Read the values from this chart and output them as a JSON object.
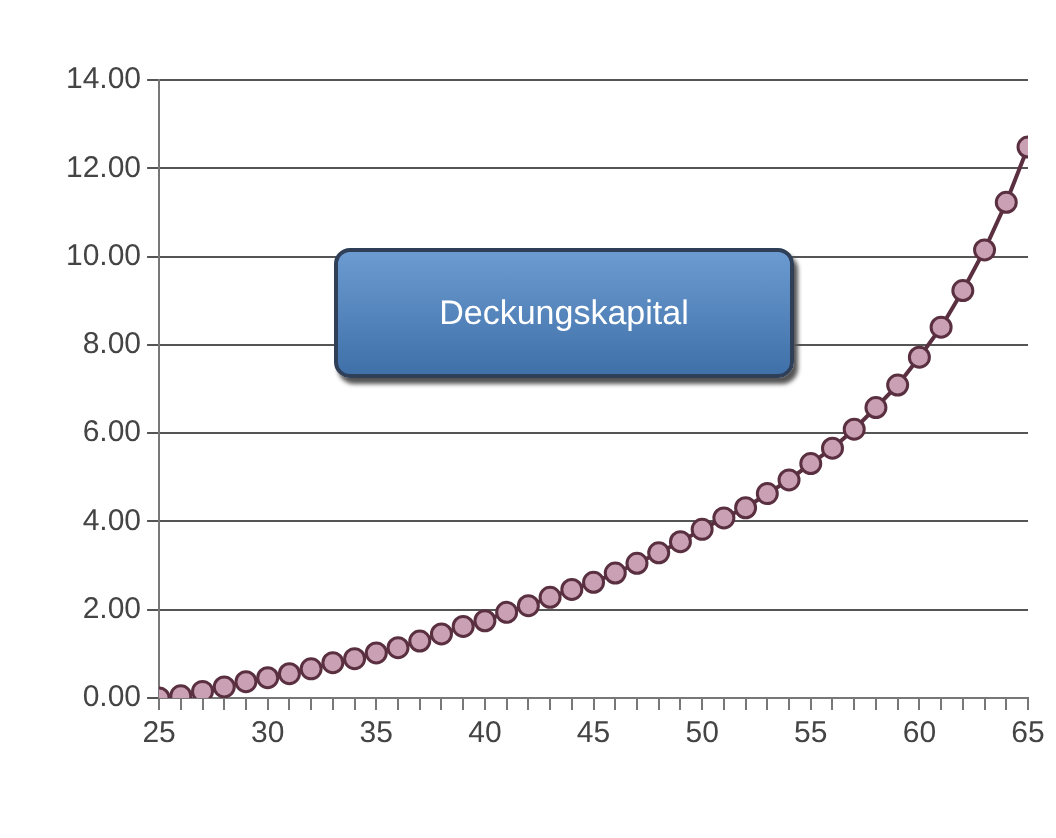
{
  "chart_data": {
    "type": "line",
    "annotations": [
      "Deckungskapital"
    ],
    "x": [
      25,
      26,
      27,
      28,
      29,
      30,
      31,
      32,
      33,
      34,
      35,
      36,
      37,
      38,
      39,
      40,
      41,
      42,
      43,
      44,
      45,
      46,
      47,
      48,
      49,
      50,
      51,
      52,
      53,
      54,
      55,
      56,
      57,
      58,
      59,
      60,
      61,
      62,
      63,
      64,
      65
    ],
    "series": [
      {
        "color": "#5a3040",
        "values": [
          0,
          0.05,
          0.15,
          0.25,
          0.37,
          0.46,
          0.55,
          0.66,
          0.8,
          0.89,
          1.02,
          1.14,
          1.29,
          1.45,
          1.62,
          1.75,
          1.94,
          2.09,
          2.28,
          2.46,
          2.62,
          2.83,
          3.05,
          3.29,
          3.54,
          3.82,
          4.08,
          4.31,
          4.63,
          4.94,
          5.31,
          5.66,
          6.09,
          6.58,
          7.09,
          7.72,
          8.4,
          9.23,
          10.15,
          11.23,
          12.48
        ]
      }
    ],
    "marker": "circle",
    "grid": "y",
    "legend": false,
    "xlim": [
      25,
      65
    ],
    "xticks": [
      25,
      {
        "value": 26,
        "label": null
      },
      {
        "value": 27,
        "label": null
      },
      {
        "value": 28,
        "label": null
      },
      {
        "value": 29,
        "label": null
      },
      30,
      {
        "value": 31,
        "label": null
      },
      {
        "value": 32,
        "label": null
      },
      {
        "value": 33,
        "label": null
      },
      {
        "value": 34,
        "label": null
      },
      35,
      {
        "value": 36,
        "label": null
      },
      {
        "value": 37,
        "label": null
      },
      {
        "value": 38,
        "label": null
      },
      {
        "value": 39,
        "label": null
      },
      40,
      {
        "value": 41,
        "label": null
      },
      {
        "value": 42,
        "label": null
      },
      {
        "value": 43,
        "label": null
      },
      {
        "value": 44,
        "label": null
      },
      45,
      {
        "value": 46,
        "label": null
      },
      {
        "value": 47,
        "label": null
      },
      {
        "value": 48,
        "label": null
      },
      {
        "value": 49,
        "label": null
      },
      50,
      {
        "value": 51,
        "label": null
      },
      {
        "value": 52,
        "label": null
      },
      {
        "value": 53,
        "label": null
      },
      {
        "value": 54,
        "label": null
      },
      55,
      {
        "value": 56,
        "label": null
      },
      {
        "value": 57,
        "label": null
      },
      {
        "value": 58,
        "label": null
      },
      {
        "value": 59,
        "label": null
      },
      60,
      {
        "value": 61,
        "label": null
      },
      {
        "value": 62,
        "label": null
      },
      {
        "value": 63,
        "label": null
      },
      {
        "value": 64,
        "label": null
      },
      65
    ],
    "ylim": [
      0,
      14
    ],
    "yticks": [
      {
        "value": 0,
        "label": "0.00"
      },
      {
        "value": 2,
        "label": "2.00"
      },
      {
        "value": 4,
        "label": "4.00"
      },
      {
        "value": 6,
        "label": "6.00"
      },
      {
        "value": 8,
        "label": "8.00"
      },
      {
        "value": 10,
        "label": "10.00"
      },
      {
        "value": 12,
        "label": "12.00"
      },
      {
        "value": 14,
        "label": "14.00"
      }
    ]
  }
}
